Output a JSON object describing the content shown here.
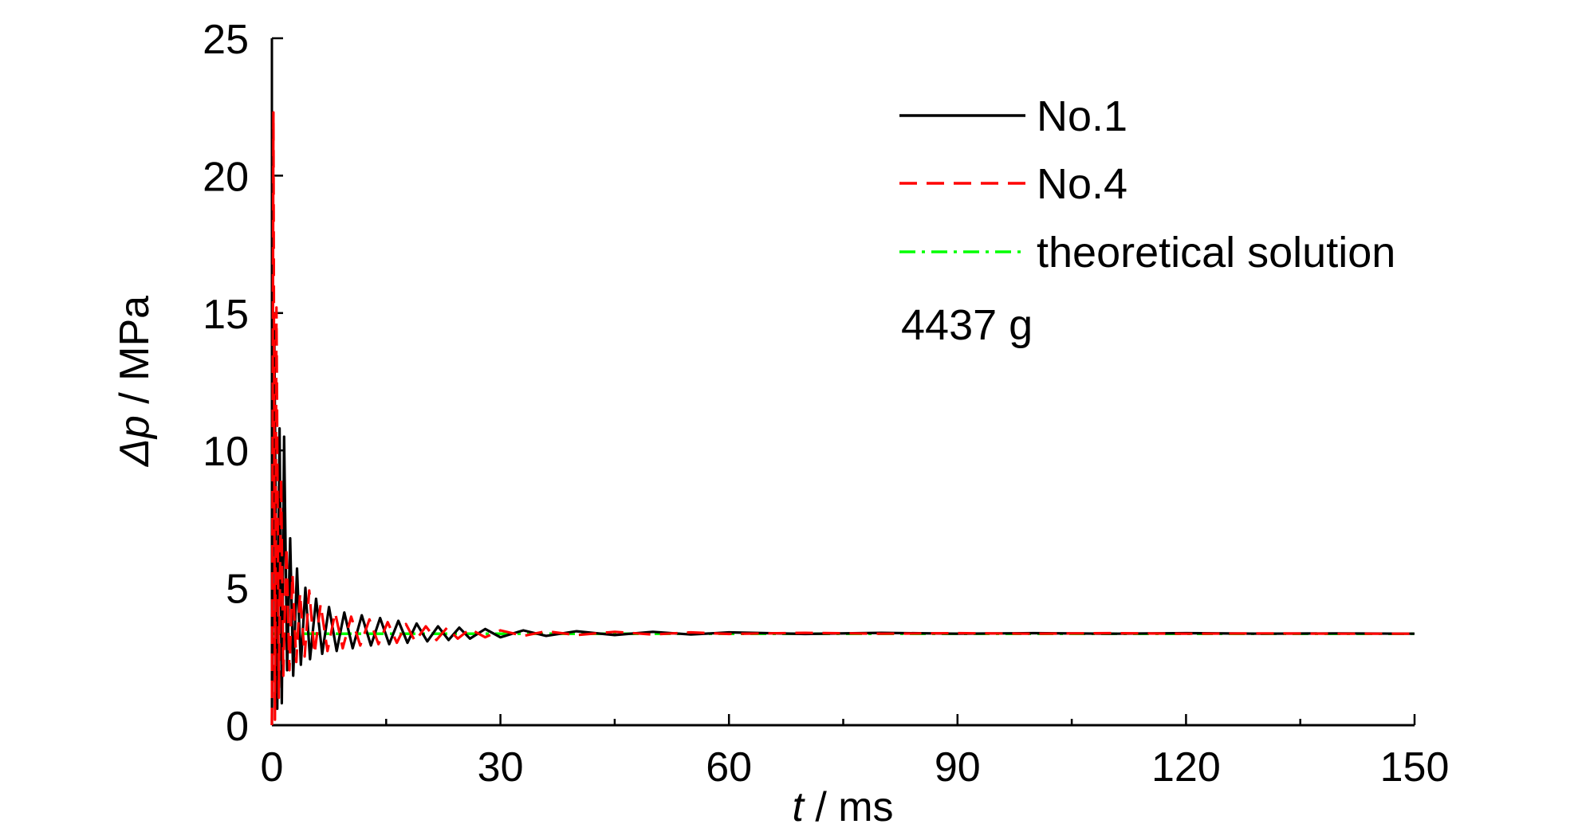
{
  "chart_data": {
    "type": "line",
    "xlabel_var": "t",
    "xlabel_unit": " / ms",
    "ylabel_var": "Δp",
    "ylabel_unit": " / MPa",
    "xlim": [
      0,
      150
    ],
    "ylim": [
      0,
      25
    ],
    "xticks": [
      0,
      30,
      60,
      90,
      120,
      150
    ],
    "yticks": [
      0,
      5,
      10,
      15,
      20,
      25
    ],
    "xticks_minor": [
      0,
      15,
      30,
      45,
      60,
      75,
      90,
      105,
      120,
      135,
      150
    ],
    "grid": false,
    "legend_position": "top-right",
    "annotation": "4437 g",
    "series": [
      {
        "name": "No.1",
        "color": "#000000",
        "style": "solid",
        "x": [
          0,
          0.3,
          0.7,
          1.0,
          1.3,
          1.6,
          2.0,
          2.4,
          2.8,
          3.3,
          3.8,
          4.4,
          5.0,
          5.8,
          6.6,
          7.5,
          8.5,
          9.5,
          10.6,
          11.8,
          13.0,
          14.2,
          15.4,
          16.6,
          17.8,
          19.0,
          20.4,
          21.8,
          23.2,
          24.6,
          26.0,
          28,
          30,
          33,
          36,
          40,
          45,
          50,
          55,
          60,
          70,
          80,
          90,
          100,
          110,
          120,
          130,
          140,
          150
        ],
        "y": [
          0.0,
          14.5,
          0.6,
          10.8,
          0.8,
          10.5,
          2.0,
          6.8,
          1.8,
          5.7,
          2.2,
          5.0,
          2.4,
          4.6,
          2.6,
          4.3,
          2.7,
          4.1,
          2.8,
          4.0,
          2.9,
          3.9,
          2.95,
          3.8,
          3.0,
          3.7,
          3.05,
          3.6,
          3.1,
          3.55,
          3.15,
          3.5,
          3.2,
          3.45,
          3.25,
          3.42,
          3.28,
          3.4,
          3.3,
          3.38,
          3.32,
          3.36,
          3.33,
          3.35,
          3.33,
          3.35,
          3.33,
          3.34,
          3.33
        ]
      },
      {
        "name": "No.4",
        "color": "#ff0000",
        "style": "dashed",
        "x": [
          0,
          0.2,
          0.4,
          0.6,
          0.9,
          1.2,
          1.5,
          1.9,
          2.3,
          2.7,
          3.2,
          3.7,
          4.3,
          4.9,
          5.6,
          6.4,
          7.3,
          8.3,
          9.3,
          10.4,
          11.6,
          12.8,
          14.0,
          15.2,
          16.4,
          17.6,
          18.8,
          20.2,
          21.6,
          23.0,
          24.4,
          26.0,
          28,
          30,
          33,
          36,
          40,
          45,
          50,
          55,
          60,
          70,
          80,
          90,
          100,
          110,
          120,
          130,
          140,
          150
        ],
        "y": [
          0.0,
          22.3,
          0.2,
          15.2,
          1.0,
          9.0,
          1.8,
          6.5,
          2.0,
          5.5,
          2.3,
          4.8,
          2.5,
          4.9,
          2.6,
          4.4,
          2.7,
          4.1,
          2.8,
          3.95,
          2.9,
          3.85,
          2.95,
          3.75,
          3.0,
          3.68,
          3.05,
          3.6,
          3.1,
          3.55,
          3.15,
          3.5,
          3.2,
          3.45,
          3.25,
          3.42,
          3.28,
          3.4,
          3.3,
          3.38,
          3.32,
          3.36,
          3.33,
          3.35,
          3.33,
          3.35,
          3.33,
          3.34,
          3.33,
          3.33
        ]
      },
      {
        "name": "theoretical solution",
        "color": "#00ff00",
        "style": "dashdot",
        "x": [
          0,
          150
        ],
        "y": [
          3.33,
          3.33
        ]
      }
    ]
  }
}
